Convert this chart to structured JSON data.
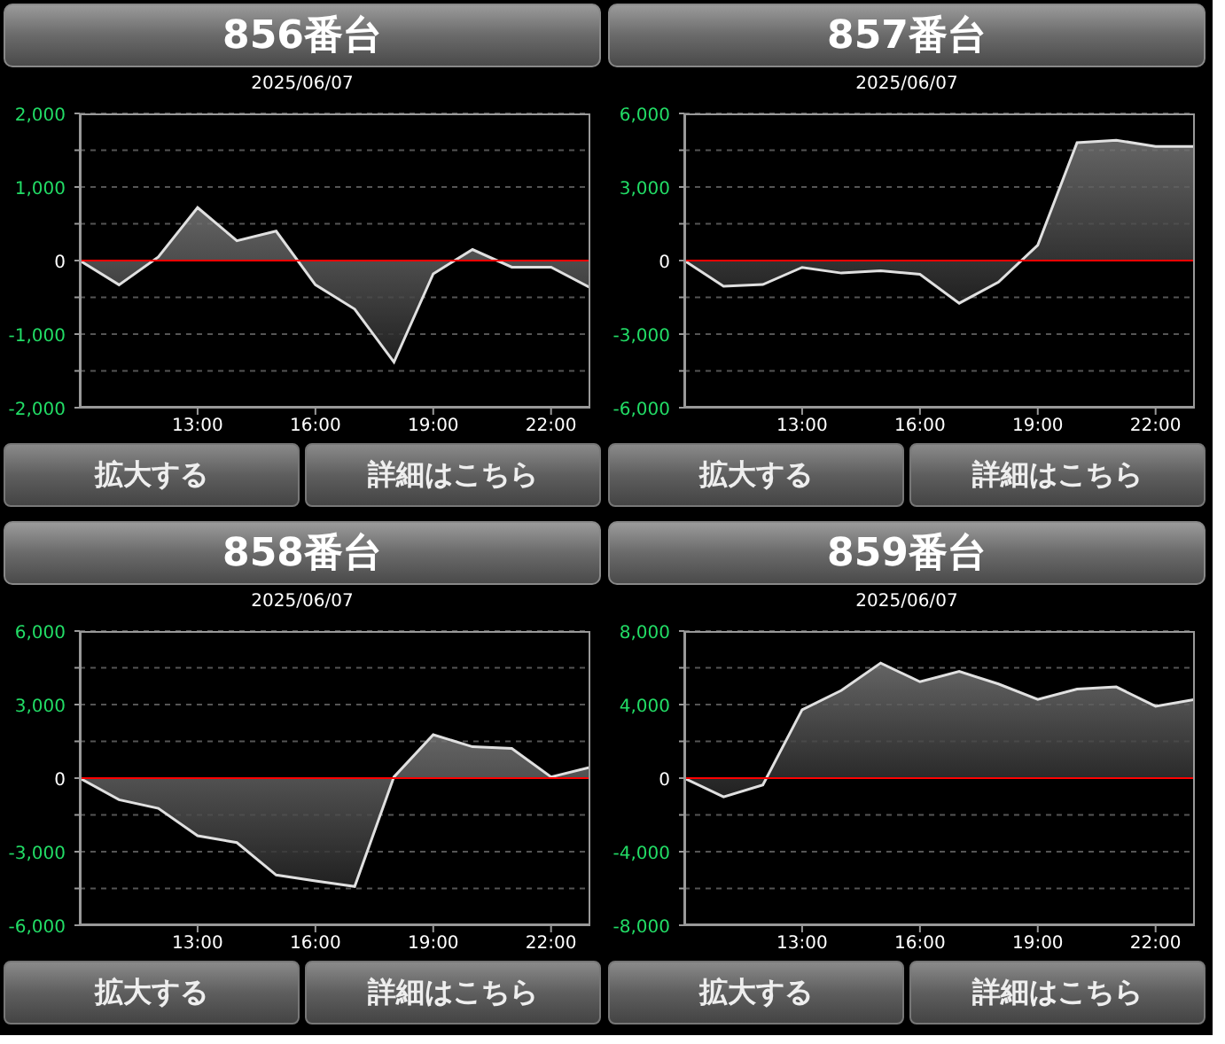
{
  "chart_data": [
    {
      "type": "area",
      "title": "856番台",
      "subtitle": "2025/06/07",
      "x": [
        10,
        11,
        12,
        13,
        14,
        15,
        16,
        17,
        18,
        19,
        20,
        21,
        22,
        23
      ],
      "color": "#e0e0e0",
      "values": [
        0,
        -330,
        50,
        720,
        270,
        400,
        -330,
        -660,
        -1380,
        -180,
        150,
        -90,
        -90,
        -370
      ],
      "xlim": [
        10,
        23
      ],
      "xticks": [
        {
          "value": 13,
          "label": "13:00"
        },
        {
          "value": 16,
          "label": "16:00"
        },
        {
          "value": 19,
          "label": "19:00"
        },
        {
          "value": 22,
          "label": "22:00"
        }
      ],
      "ylim": [
        -2000,
        2000
      ],
      "yticks": [
        {
          "value": -2000,
          "label": "-2,000"
        },
        {
          "value": -1500,
          "label": null
        },
        {
          "value": -1000,
          "label": "-1,000"
        },
        {
          "value": -500,
          "label": null
        },
        {
          "value": 0,
          "label": "0"
        },
        {
          "value": 500,
          "label": null
        },
        {
          "value": 1000,
          "label": "1,000"
        },
        {
          "value": 1500,
          "label": null
        },
        {
          "value": 2000,
          "label": "2,000"
        }
      ],
      "grid": "y",
      "ref_lines": [
        {
          "axis": "y",
          "value": 0,
          "color": "#ff0000"
        }
      ],
      "annotations": [
        "拡大する",
        "詳細はこちら"
      ]
    },
    {
      "type": "area",
      "title": "857番台",
      "subtitle": "2025/06/07",
      "x": [
        10,
        11,
        12,
        13,
        14,
        15,
        16,
        17,
        18,
        19,
        20,
        21,
        22,
        23
      ],
      "color": "#e0e0e0",
      "values": [
        0,
        -1050,
        -980,
        -280,
        -510,
        -420,
        -560,
        -1740,
        -880,
        630,
        4810,
        4910,
        4650,
        4650
      ],
      "xlim": [
        10,
        23
      ],
      "xticks": [
        {
          "value": 13,
          "label": "13:00"
        },
        {
          "value": 16,
          "label": "16:00"
        },
        {
          "value": 19,
          "label": "19:00"
        },
        {
          "value": 22,
          "label": "22:00"
        }
      ],
      "ylim": [
        -6000,
        6000
      ],
      "yticks": [
        {
          "value": -6000,
          "label": "-6,000"
        },
        {
          "value": -4500,
          "label": null
        },
        {
          "value": -3000,
          "label": "-3,000"
        },
        {
          "value": -1500,
          "label": null
        },
        0,
        {
          "value": 1500,
          "label": null
        },
        {
          "value": 3000,
          "label": "3,000"
        },
        {
          "value": 4500,
          "label": null
        },
        {
          "value": 6000,
          "label": "6,000"
        }
      ],
      "grid": "y",
      "ref_lines": [
        {
          "axis": "y",
          "value": 0,
          "color": "#ff0000"
        }
      ],
      "annotations": [
        "拡大する",
        "詳細はこちら"
      ]
    },
    {
      "type": "area",
      "title": "858番台",
      "subtitle": "2025/06/07",
      "x": [
        10,
        11,
        12,
        13,
        14,
        15,
        16,
        17,
        18,
        19,
        20,
        21,
        22,
        23
      ],
      "color": "#e0e0e0",
      "values": [
        0,
        -880,
        -1230,
        -2350,
        -2630,
        -3950,
        -4190,
        -4420,
        50,
        1770,
        1280,
        1210,
        50,
        440
      ],
      "xlim": [
        10,
        23
      ],
      "xticks": [
        {
          "value": 13,
          "label": "13:00"
        },
        {
          "value": 16,
          "label": "16:00"
        },
        {
          "value": 19,
          "label": "19:00"
        },
        {
          "value": 22,
          "label": "22:00"
        }
      ],
      "ylim": [
        -6000,
        6000
      ],
      "yticks": [
        {
          "value": -6000,
          "label": "-6,000"
        },
        {
          "value": -4500,
          "label": null
        },
        {
          "value": -3000,
          "label": "-3,000"
        },
        {
          "value": -1500,
          "label": null
        },
        0,
        {
          "value": 1500,
          "label": null
        },
        {
          "value": 3000,
          "label": "3,000"
        },
        {
          "value": 4500,
          "label": null
        },
        {
          "value": 6000,
          "label": "6,000"
        }
      ],
      "grid": "y",
      "ref_lines": [
        {
          "axis": "y",
          "value": 0,
          "color": "#ff0000"
        }
      ],
      "annotations": [
        "拡大する",
        "詳細はこちら"
      ]
    },
    {
      "type": "area",
      "title": "859番台",
      "subtitle": "2025/06/07",
      "x": [
        10,
        11,
        12,
        13,
        14,
        15,
        16,
        17,
        18,
        19,
        20,
        21,
        22,
        23
      ],
      "color": "#e0e0e0",
      "values": [
        0,
        -1020,
        -370,
        3720,
        4770,
        6260,
        5240,
        5800,
        5120,
        4280,
        4840,
        4960,
        3910,
        4280
      ],
      "xlim": [
        10,
        23
      ],
      "xticks": [
        {
          "value": 13,
          "label": "13:00"
        },
        {
          "value": 16,
          "label": "16:00"
        },
        {
          "value": 19,
          "label": "19:00"
        },
        {
          "value": 22,
          "label": "22:00"
        }
      ],
      "ylim": [
        -8000,
        8000
      ],
      "yticks": [
        {
          "value": -8000,
          "label": "-8,000"
        },
        {
          "value": -6000,
          "label": null
        },
        {
          "value": -4000,
          "label": "-4,000"
        },
        {
          "value": -2000,
          "label": null
        },
        {
          "value": 0,
          "label": "0"
        },
        {
          "value": 2000,
          "label": null
        },
        {
          "value": 4000,
          "label": "4,000"
        },
        {
          "value": 6000,
          "label": null
        },
        {
          "value": 8000,
          "label": "8,000"
        }
      ],
      "grid": "y",
      "ref_lines": [
        {
          "axis": "y",
          "value": 0,
          "color": "#ff0000"
        }
      ],
      "annotations": [
        "拡大する",
        "詳細はこちら"
      ]
    }
  ]
}
